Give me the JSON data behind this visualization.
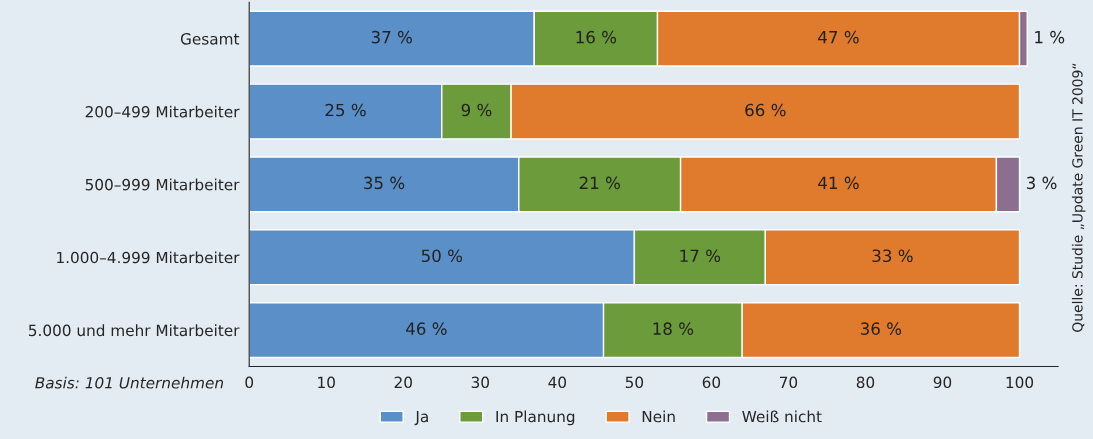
{
  "chart_data": {
    "type": "bar",
    "orientation": "horizontal",
    "stacked": true,
    "categories": [
      "Gesamt",
      "200–499 Mitarbeiter",
      "500–999 Mitarbeiter",
      "1.000–4.999 Mitarbeiter",
      "5.000 und mehr Mitarbeiter"
    ],
    "series": [
      {
        "name": "Ja",
        "color": "#5a8fc8",
        "values": [
          37,
          25,
          35,
          50,
          46
        ],
        "value_labels": [
          "37 %",
          "25 %",
          "35 %",
          "50 %",
          "46 %"
        ]
      },
      {
        "name": "In Planung",
        "color": "#6b9b3a",
        "values": [
          16,
          9,
          21,
          17,
          18
        ],
        "value_labels": [
          "16 %",
          "9 %",
          "21 %",
          "17 %",
          "18 %"
        ]
      },
      {
        "name": "Nein",
        "color": "#e07a2c",
        "values": [
          47,
          66,
          41,
          33,
          36
        ],
        "value_labels": [
          "47 %",
          "66 %",
          "41 %",
          "33 %",
          "36 %"
        ]
      },
      {
        "name": "Weiß nicht",
        "color": "#8c6e8e",
        "values": [
          1,
          null,
          3,
          null,
          null
        ],
        "value_labels": [
          "1 %",
          null,
          "3 %",
          null,
          null
        ]
      }
    ],
    "xlim": [
      0,
      105
    ],
    "xticks": [
      0,
      10,
      20,
      30,
      40,
      50,
      60,
      70,
      80,
      90,
      100
    ],
    "grid": false,
    "legend": "bottom",
    "annotations": [
      "Basis: 101 Unternehmen",
      "Quelle: Studie „Update Green IT 2009“"
    ]
  }
}
